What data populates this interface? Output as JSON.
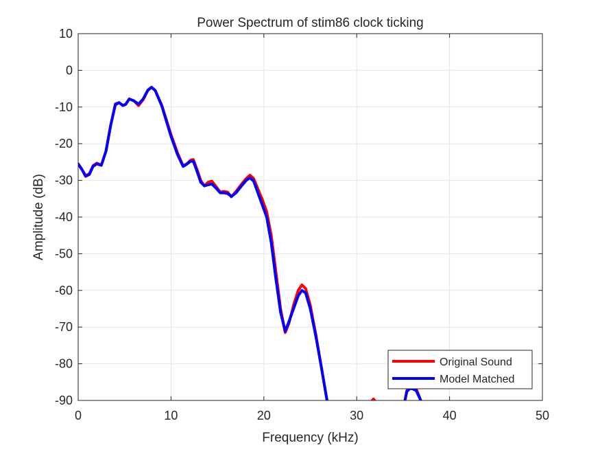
{
  "chart_data": {
    "type": "line",
    "title": "Power Spectrum of stim86 clock ticking",
    "xlabel": "Frequency (kHz)",
    "ylabel": "Amplitude (dB)",
    "xlim": [
      0,
      50
    ],
    "ylim": [
      -90,
      10
    ],
    "xticks": [
      0,
      10,
      20,
      30,
      40,
      50
    ],
    "yticks": [
      10,
      0,
      -10,
      -20,
      -30,
      -40,
      -50,
      -60,
      -70,
      -80,
      -90
    ],
    "xtick_labels": [
      "0",
      "10",
      "20",
      "30",
      "40",
      "50"
    ],
    "ytick_labels": [
      "10",
      "0",
      "-10",
      "-20",
      "-30",
      "-40",
      "-50",
      "-60",
      "-70",
      "-80",
      "-90"
    ],
    "grid": true,
    "legend_position": "bottom-right",
    "series": [
      {
        "name": "Original Sound",
        "color": "#ff0000",
        "segments": [
          [
            [
              0,
              -25.5
            ],
            [
              0.4,
              -27
            ],
            [
              0.8,
              -28.7
            ],
            [
              1.2,
              -28.2
            ],
            [
              1.6,
              -26
            ],
            [
              2.0,
              -25.3
            ],
            [
              2.5,
              -25.8
            ],
            [
              3.0,
              -22
            ],
            [
              3.5,
              -15
            ],
            [
              4.0,
              -9.5
            ],
            [
              4.4,
              -8.8
            ],
            [
              4.8,
              -9.5
            ],
            [
              5.1,
              -9.3
            ],
            [
              5.5,
              -7.8
            ],
            [
              6.0,
              -8.3
            ],
            [
              6.5,
              -9.6
            ],
            [
              7.0,
              -8
            ],
            [
              7.5,
              -5.5
            ],
            [
              7.9,
              -4.6
            ],
            [
              8.3,
              -5.5
            ],
            [
              9.0,
              -9.5
            ],
            [
              10.0,
              -17.5
            ],
            [
              10.7,
              -22.5
            ],
            [
              11.3,
              -26.0
            ],
            [
              11.7,
              -25.5
            ],
            [
              12.1,
              -24.5
            ],
            [
              12.4,
              -24.3
            ],
            [
              12.8,
              -27
            ],
            [
              13.2,
              -30
            ],
            [
              13.6,
              -31.5
            ],
            [
              14.0,
              -30.5
            ],
            [
              14.4,
              -30.2
            ],
            [
              14.8,
              -31.5
            ],
            [
              15.3,
              -33.2
            ],
            [
              15.7,
              -33
            ],
            [
              16.1,
              -33.2
            ],
            [
              16.5,
              -34.5
            ],
            [
              17.0,
              -33
            ],
            [
              17.6,
              -31
            ],
            [
              18.1,
              -29.5
            ],
            [
              18.5,
              -28.6
            ],
            [
              18.9,
              -29.5
            ],
            [
              19.3,
              -32
            ],
            [
              19.8,
              -35
            ],
            [
              20.3,
              -38.5
            ],
            [
              20.8,
              -45
            ],
            [
              21.3,
              -55
            ],
            [
              21.8,
              -65
            ],
            [
              22.3,
              -71.5
            ],
            [
              22.7,
              -69
            ],
            [
              23.2,
              -64
            ],
            [
              23.7,
              -60
            ],
            [
              24.1,
              -58.5
            ],
            [
              24.5,
              -59.5
            ],
            [
              25.0,
              -64
            ],
            [
              25.6,
              -72
            ],
            [
              26.2,
              -81
            ],
            [
              26.8,
              -90
            ]
          ],
          [
            [
              31.6,
              -90.2
            ],
            [
              31.8,
              -89.6
            ],
            [
              32.0,
              -90.2
            ]
          ],
          [
            [
              35.2,
              -90
            ],
            [
              35.4,
              -87.3
            ],
            [
              35.7,
              -86.4
            ],
            [
              36.0,
              -86.4
            ],
            [
              36.4,
              -86.8
            ],
            [
              36.9,
              -90
            ]
          ]
        ]
      },
      {
        "name": "Model Matched",
        "color": "#0000ff",
        "segments": [
          [
            [
              0,
              -25.5
            ],
            [
              0.4,
              -27
            ],
            [
              0.8,
              -28.9
            ],
            [
              1.2,
              -28.4
            ],
            [
              1.6,
              -26.2
            ],
            [
              2.0,
              -25.5
            ],
            [
              2.5,
              -25.9
            ],
            [
              3.0,
              -22
            ],
            [
              3.5,
              -15
            ],
            [
              4.0,
              -9.2
            ],
            [
              4.4,
              -8.8
            ],
            [
              4.8,
              -9.6
            ],
            [
              5.1,
              -9.3
            ],
            [
              5.5,
              -7.8
            ],
            [
              6.0,
              -8.3
            ],
            [
              6.5,
              -9.2
            ],
            [
              7.0,
              -7.8
            ],
            [
              7.5,
              -5.4
            ],
            [
              7.9,
              -4.6
            ],
            [
              8.3,
              -5.5
            ],
            [
              9.0,
              -9.7
            ],
            [
              10.0,
              -18
            ],
            [
              10.7,
              -23
            ],
            [
              11.3,
              -26.2
            ],
            [
              11.7,
              -25.6
            ],
            [
              12.1,
              -24.8
            ],
            [
              12.4,
              -24.8
            ],
            [
              12.8,
              -27.5
            ],
            [
              13.2,
              -30.5
            ],
            [
              13.6,
              -31.5
            ],
            [
              14.0,
              -31.2
            ],
            [
              14.4,
              -31
            ],
            [
              14.8,
              -32
            ],
            [
              15.3,
              -33.4
            ],
            [
              15.7,
              -33.4
            ],
            [
              16.1,
              -33.6
            ],
            [
              16.5,
              -34.4
            ],
            [
              17.0,
              -33.4
            ],
            [
              17.6,
              -31.5
            ],
            [
              18.1,
              -30
            ],
            [
              18.5,
              -29.3
            ],
            [
              18.9,
              -30.2
            ],
            [
              19.3,
              -33
            ],
            [
              19.8,
              -36.5
            ],
            [
              20.3,
              -40
            ],
            [
              20.8,
              -47
            ],
            [
              21.3,
              -57
            ],
            [
              21.8,
              -66
            ],
            [
              22.3,
              -71.1
            ],
            [
              22.7,
              -68.5
            ],
            [
              23.2,
              -65
            ],
            [
              23.7,
              -61.5
            ],
            [
              24.1,
              -60
            ],
            [
              24.5,
              -60.7
            ],
            [
              25.0,
              -65
            ],
            [
              25.6,
              -72.5
            ],
            [
              26.2,
              -81
            ],
            [
              26.8,
              -90
            ]
          ],
          [
            [
              35.2,
              -90
            ],
            [
              35.4,
              -87.6
            ],
            [
              35.7,
              -86.8
            ],
            [
              36.0,
              -86.8
            ],
            [
              36.4,
              -87.3
            ],
            [
              36.9,
              -90
            ]
          ]
        ]
      }
    ]
  }
}
